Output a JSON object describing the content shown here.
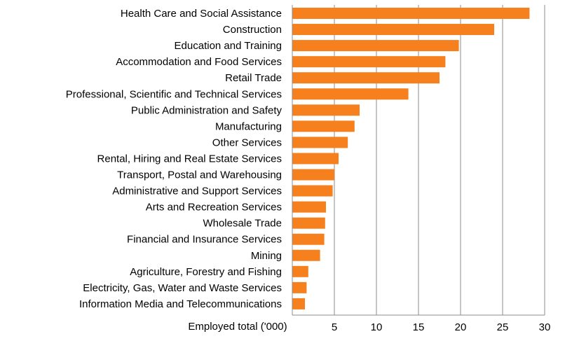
{
  "colors": {
    "bar": "#F7801E",
    "grid": "#8C8C8C",
    "axis": "#8C8C8C"
  },
  "chart_data": {
    "type": "bar",
    "orientation": "horizontal",
    "title": "",
    "xlabel": "Employed total ('000)",
    "ylabel": "",
    "xlim": [
      0,
      30
    ],
    "xticks": [
      5,
      10,
      15,
      20,
      25,
      30
    ],
    "grid": true,
    "legend": "none",
    "categories": [
      "Health Care and Social Assistance",
      "Construction",
      "Education and Training",
      "Accommodation and Food Services",
      "Retail Trade",
      "Professional, Scientific and Technical Services",
      "Public Administration and Safety",
      "Manufacturing",
      "Other Services",
      "Rental, Hiring and Real Estate Services",
      "Transport, Postal and Warehousing",
      "Administrative and Support Services",
      "Arts and Recreation Services",
      "Wholesale Trade",
      "Financial and Insurance Services",
      "Mining",
      "Agriculture, Forestry and Fishing",
      "Electricity, Gas, Water and Waste Services",
      "Information Media and Telecommunications"
    ],
    "values": [
      28.2,
      24.0,
      19.8,
      18.2,
      17.5,
      13.8,
      8.0,
      7.4,
      6.6,
      5.5,
      5.0,
      4.8,
      4.0,
      3.9,
      3.8,
      3.3,
      1.9,
      1.7,
      1.5
    ]
  }
}
